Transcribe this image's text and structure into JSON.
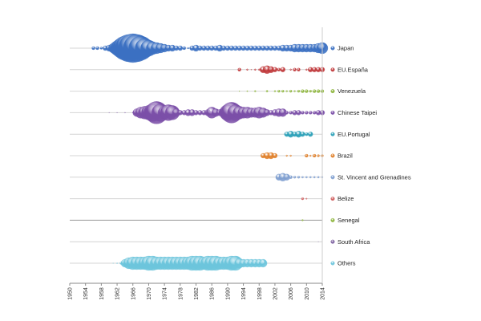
{
  "chart_data": {
    "type": "scatter",
    "subtype": "bubble",
    "title": "",
    "xlabel": "",
    "ylabel": "",
    "xlim": [
      1950,
      2014
    ],
    "x_ticks": [
      "1950",
      "1954",
      "1958",
      "1962",
      "1966",
      "1970",
      "1974",
      "1978",
      "1982",
      "1986",
      "1990",
      "1994",
      "1998",
      "2002",
      "2006",
      "2010",
      "2014"
    ],
    "legend_position": "right",
    "series": [
      {
        "name": "Japan",
        "color": "#3b70c2",
        "start": 1956,
        "sizes": [
          2,
          2,
          1.5,
          3,
          4,
          6,
          9,
          12,
          15,
          17,
          18,
          17,
          15,
          12,
          10,
          8,
          7,
          6,
          5,
          4,
          4,
          3,
          3,
          2,
          1,
          3,
          4,
          3,
          3,
          3,
          3,
          3,
          4,
          3,
          3,
          3,
          3,
          3,
          3,
          3,
          3,
          3,
          3,
          3,
          3,
          3,
          3,
          3,
          4,
          4,
          4,
          5,
          5,
          5,
          5,
          5,
          5,
          6,
          7
        ]
      },
      {
        "name": "EU.España",
        "color": "#c0393b",
        "start": 1993,
        "sizes": [
          2,
          0,
          1,
          0.5,
          1,
          1,
          4,
          5,
          4,
          3,
          2,
          3,
          0,
          1,
          2,
          2,
          0,
          1,
          3,
          3,
          3,
          3
        ]
      },
      {
        "name": "Venezuela",
        "color": "#8db53c",
        "start": 1993,
        "sizes": [
          0.5,
          0,
          0.7,
          0,
          1,
          0,
          0,
          1.2,
          0,
          1,
          1.5,
          1.5,
          1,
          1.5,
          1,
          1.5,
          2,
          2,
          1.5,
          2,
          2,
          2
        ]
      },
      {
        "name": "Chinese Taipei",
        "color": "#7b4fa8",
        "start": 1960,
        "sizes": [
          0.4,
          0,
          0.4,
          0,
          0.5,
          0,
          0.6,
          5,
          7,
          8,
          9,
          11,
          14,
          11,
          8,
          10,
          9,
          5,
          3,
          3,
          4,
          4,
          3,
          3,
          3,
          4,
          7,
          5,
          4,
          6,
          10,
          13,
          10,
          8,
          7,
          7,
          6,
          6,
          7,
          6,
          4,
          3,
          4,
          5,
          5,
          2,
          2,
          3,
          3,
          2,
          2,
          2,
          2,
          3,
          3
        ]
      },
      {
        "name": "EU.Portugal",
        "color": "#2aa0b8",
        "start": 2005,
        "sizes": [
          3,
          4,
          3,
          4,
          3,
          2,
          3
        ]
      },
      {
        "name": "Brazil",
        "color": "#e0802a",
        "start": 1999,
        "sizes": [
          3,
          4,
          4,
          3,
          0,
          0,
          1,
          1,
          0,
          0,
          0,
          2,
          1,
          2,
          1.5,
          1.5
        ]
      },
      {
        "name": "St. Vincent and Grenadines",
        "color": "#7f9fd0",
        "start": 2003,
        "sizes": [
          4,
          5,
          4,
          2,
          1.5,
          1.5,
          1.2,
          1.2,
          1.2,
          1.2,
          1.2,
          1
        ]
      },
      {
        "name": "Belize",
        "color": "#d06060",
        "start": 2009,
        "sizes": [
          1.5,
          0.8
        ]
      },
      {
        "name": "Senegal",
        "color": "#8db53c",
        "start": 2009,
        "sizes": [
          1
        ]
      },
      {
        "name": "South Africa",
        "color": "#8064a2",
        "start": 2013,
        "sizes": [
          0.3
        ]
      },
      {
        "name": "Others",
        "color": "#6cc5dc",
        "start": 1961,
        "sizes": [
          0.4,
          0.6,
          1.5,
          5,
          7,
          8,
          8,
          8,
          8,
          9,
          9,
          8,
          8,
          8,
          8,
          8,
          8,
          8,
          8,
          8,
          9,
          9,
          9,
          8,
          9,
          9,
          9,
          8,
          8,
          8,
          9,
          9,
          6,
          5,
          5,
          5,
          5,
          5,
          5
        ]
      }
    ]
  }
}
